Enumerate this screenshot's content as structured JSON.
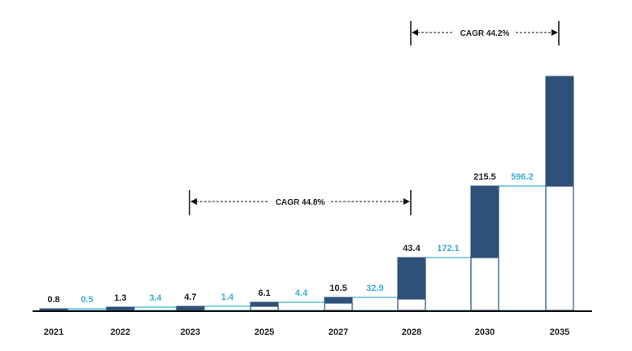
{
  "chart_data": {
    "type": "bar",
    "categories": [
      "2021",
      "2022",
      "2023",
      "2025",
      "2027",
      "2028",
      "2030",
      "2035"
    ],
    "series": [
      {
        "values": [
          0.8,
          1.3,
          4.7,
          6.1,
          10.5,
          43.4,
          215.5,
          null
        ]
      },
      {
        "values": [
          0.5,
          3.4,
          1.4,
          4.4,
          32.9,
          172.1,
          596.2,
          null
        ]
      }
    ],
    "increments": [
      {
        "between": [
          "2021",
          "2022"
        ],
        "label": "0.5"
      },
      {
        "between": [
          "2022",
          "2023"
        ],
        "label": "3.4"
      },
      {
        "between": [
          "2023",
          "2025"
        ],
        "label": "1.4"
      },
      {
        "between": [
          "2025",
          "2027"
        ],
        "label": "4.4"
      },
      {
        "between": [
          "2027",
          "2028"
        ],
        "label": "32.9"
      },
      {
        "between": [
          "2028",
          "2030"
        ],
        "label": "172.1"
      },
      {
        "between": [
          "2030",
          "2035"
        ],
        "label": "596.2"
      }
    ],
    "annotations": [
      {
        "text": "CAGR 44.8%",
        "from": "2023",
        "to": "2028"
      },
      {
        "text": "CAGR 44.2%",
        "from": "2028",
        "to": "2035"
      }
    ],
    "colors": {
      "dark": "#2f5179",
      "cyan": "#3aaed8",
      "outline": "#2f5179",
      "text": "#222222"
    },
    "grid": false,
    "legend": "none"
  }
}
